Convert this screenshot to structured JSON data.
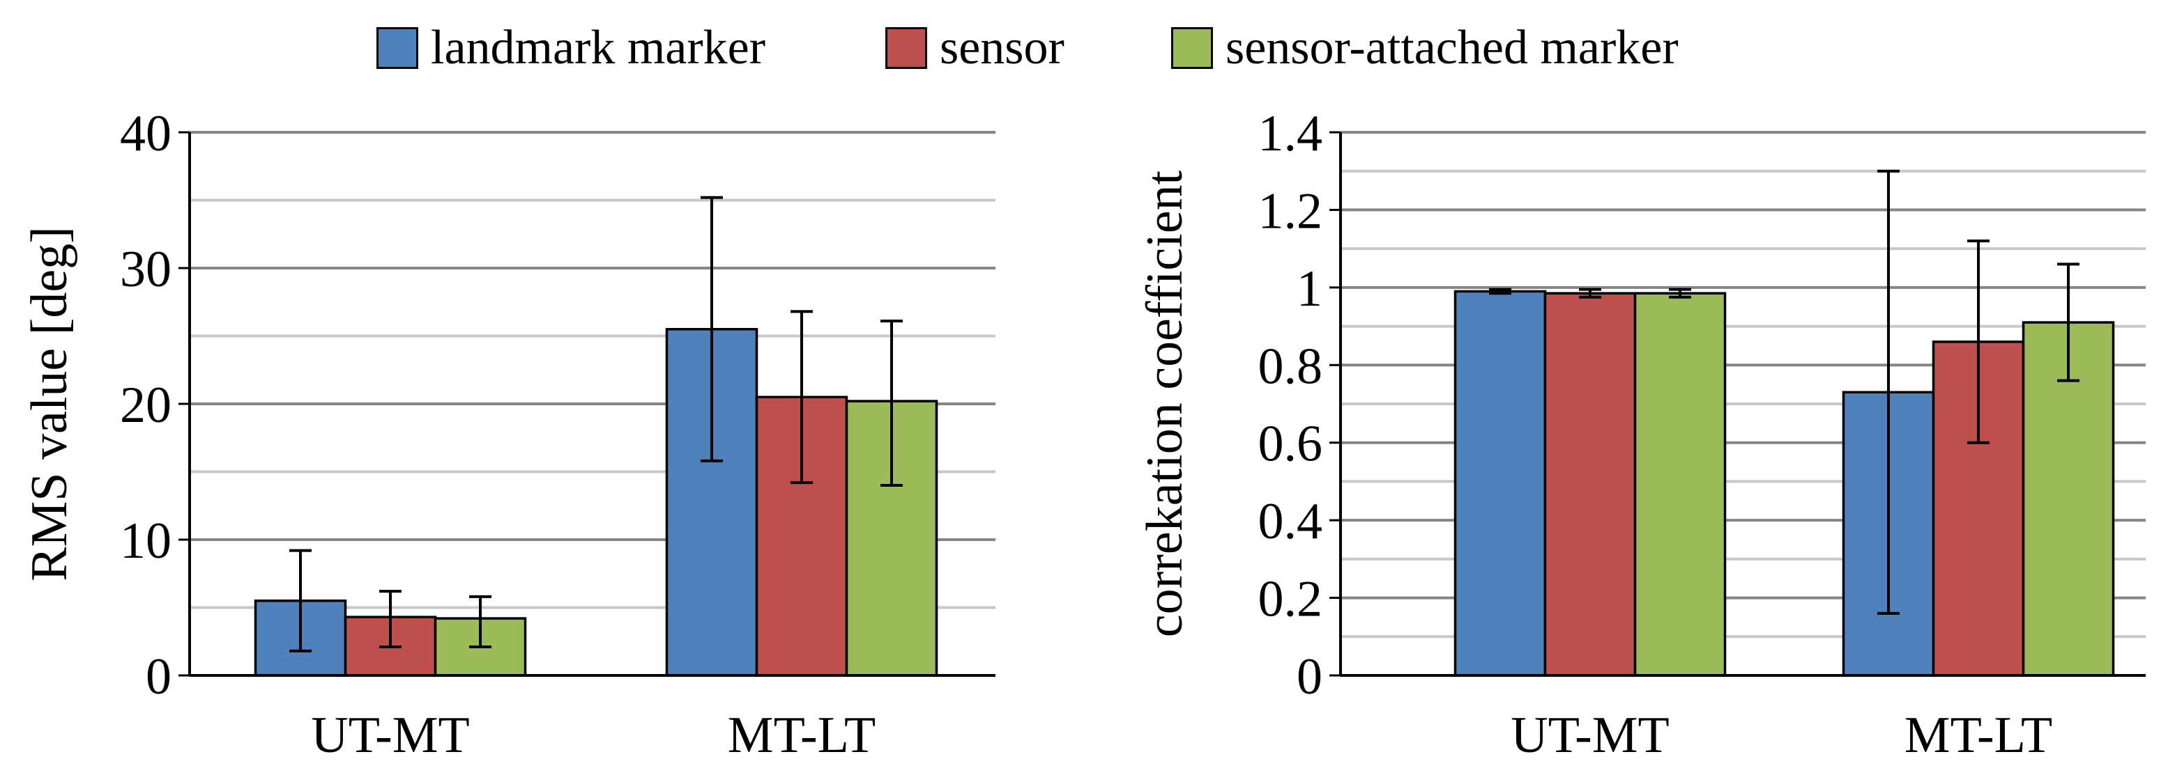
{
  "legend": [
    {
      "label": "landmark marker",
      "color": "#4F81BD"
    },
    {
      "label": "sensor",
      "color": "#C0504D"
    },
    {
      "label": "sensor-attached marker",
      "color": "#9BBB59"
    }
  ],
  "chart_data": [
    {
      "type": "bar",
      "categories": [
        "UT-MT",
        "MT-LT"
      ],
      "ylabel": "RMS value [deg]",
      "xlabel": "",
      "ylim": [
        0,
        40
      ],
      "yticks": [
        "0",
        "10",
        "20",
        "30",
        "40"
      ],
      "grid": true,
      "series": [
        {
          "name": "landmark marker",
          "values": [
            5.5,
            25.5
          ],
          "err_low": [
            1.8,
            15.8
          ],
          "err_high": [
            9.2,
            35.2
          ]
        },
        {
          "name": "sensor",
          "values": [
            4.3,
            20.5
          ],
          "err_low": [
            2.1,
            14.2
          ],
          "err_high": [
            6.2,
            26.8
          ]
        },
        {
          "name": "sensor-attached marker",
          "values": [
            4.2,
            20.2
          ],
          "err_low": [
            2.1,
            14.0
          ],
          "err_high": [
            5.8,
            26.1
          ]
        }
      ]
    },
    {
      "type": "bar",
      "categories": [
        "UT-MT",
        "MT-LT"
      ],
      "ylabel": "correkation coefficient",
      "xlabel": "",
      "ylim": [
        0,
        1.4
      ],
      "yticks": [
        "0",
        "0.2",
        "0.4",
        "0.6",
        "0.8",
        "1",
        "1.2",
        "1.4"
      ],
      "grid": true,
      "series": [
        {
          "name": "landmark marker",
          "values": [
            0.99,
            0.73
          ],
          "err_low": [
            0.985,
            0.16
          ],
          "err_high": [
            0.995,
            1.3
          ]
        },
        {
          "name": "sensor",
          "values": [
            0.985,
            0.86
          ],
          "err_low": [
            0.975,
            0.6
          ],
          "err_high": [
            0.995,
            1.12
          ]
        },
        {
          "name": "sensor-attached marker",
          "values": [
            0.985,
            0.91
          ],
          "err_low": [
            0.975,
            0.76
          ],
          "err_high": [
            0.995,
            1.06
          ]
        }
      ]
    }
  ]
}
